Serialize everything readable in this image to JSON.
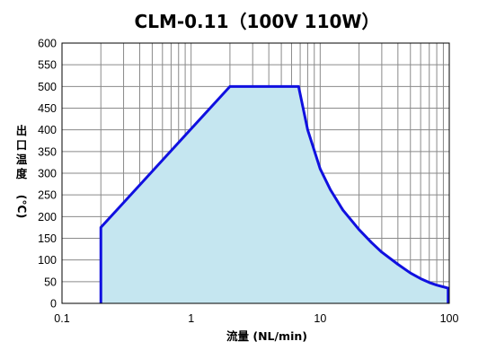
{
  "chart_data": {
    "type": "area",
    "title": "CLM-0.11（100V 110W）",
    "xlabel": "流量 (NL/min)",
    "ylabel_lines": [
      "出",
      "口",
      "温",
      "度",
      "(℃)"
    ],
    "x_scale": "log",
    "xlim": [
      0.1,
      100
    ],
    "ylim": [
      0,
      600
    ],
    "x_ticks": [
      0.1,
      1,
      10,
      100
    ],
    "x_tick_labels": [
      "0.1",
      "1",
      "10",
      "100"
    ],
    "y_ticks": [
      0,
      50,
      100,
      150,
      200,
      250,
      300,
      350,
      400,
      450,
      500,
      550,
      600
    ],
    "y_tick_labels": [
      "0",
      "50",
      "100",
      "150",
      "200",
      "250",
      "300",
      "350",
      "400",
      "450",
      "500",
      "550",
      "600"
    ],
    "grid": true,
    "line_color": "#1010e0",
    "fill_color": "#c5e6f0",
    "series": [
      {
        "x": [
          0.2,
          0.2,
          2.0,
          6.8,
          8,
          10,
          12,
          15,
          20,
          25,
          30,
          40,
          50,
          60,
          70,
          80,
          90,
          98,
          98
        ],
        "y": [
          0,
          175,
          500,
          500,
          400,
          310,
          262,
          215,
          170,
          140,
          118,
          90,
          70,
          57,
          48,
          42,
          38,
          35,
          0
        ]
      }
    ]
  }
}
